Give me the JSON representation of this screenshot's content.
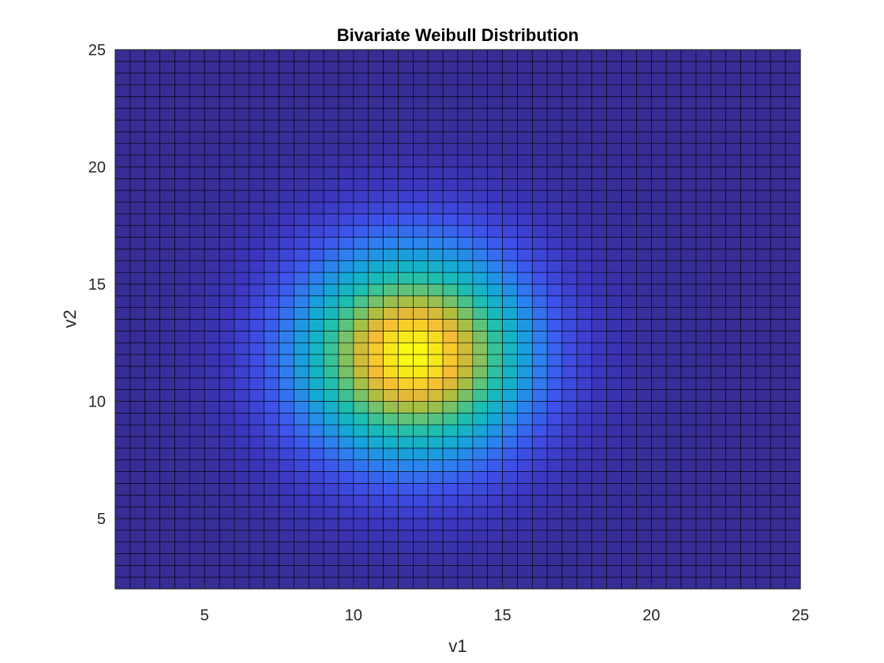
{
  "chart_data": {
    "type": "heatmap",
    "title": "Bivariate Weibull Distribution",
    "xlabel": "v1",
    "ylabel": "v2",
    "xlim": [
      2,
      25
    ],
    "ylim": [
      2,
      25
    ],
    "x_ticks": [
      5,
      10,
      15,
      20,
      25
    ],
    "y_ticks": [
      5,
      10,
      15,
      20,
      25
    ],
    "x_tick_labels": [
      "5",
      "10",
      "15",
      "20",
      "25"
    ],
    "y_tick_labels": [
      "5",
      "10",
      "15",
      "20",
      "25"
    ],
    "grid_step": 0.5,
    "peak": {
      "v1": 12.0,
      "v2": 12.0
    },
    "colormap": "parula",
    "grid_line_color": "#000000",
    "axes_color": "#262626"
  }
}
